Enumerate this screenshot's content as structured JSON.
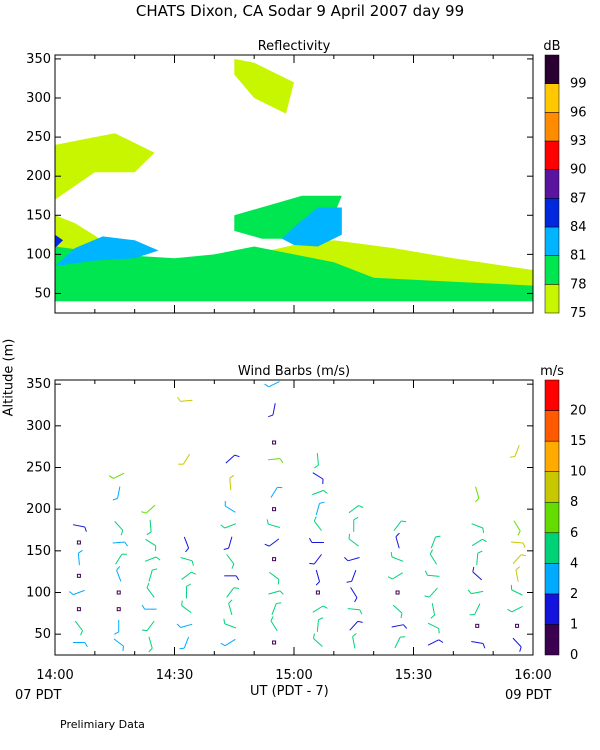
{
  "header": {
    "title": "CHATS Dixon, CA  Sodar    9 April 2007  day  99"
  },
  "footer": {
    "xlabel": "UT  (PDT - 7)",
    "left_date": "07 PDT",
    "right_date": "09 PDT",
    "note": "Prelimiary Data",
    "ylabel": "Altitude (m)"
  },
  "colors": {
    "reflectivity_scale": [
      "#c8f500",
      "#00e650",
      "#00b4ff",
      "#0028dc",
      "#5a14a0",
      "#ff0000",
      "#ff8c00",
      "#ffc800",
      "#2a0032"
    ],
    "wind_scale": [
      "#3c0050",
      "#1414dc",
      "#00aaff",
      "#00d278",
      "#64dc00",
      "#c8c800",
      "#ffaa00",
      "#ff5a00",
      "#ff0000"
    ]
  },
  "chart_data": [
    {
      "type": "heatmap",
      "title": "Reflectivity",
      "colorbar_label": "dB",
      "colorbar_ticks": [
        "75",
        "78",
        "81",
        "84",
        "87",
        "90",
        "93",
        "96",
        "99"
      ],
      "xlim": [
        "14:00",
        "16:00"
      ],
      "ylim": [
        25,
        355
      ],
      "x_ticks": [
        "14:00",
        "14:30",
        "15:00",
        "15:30",
        "16:00"
      ],
      "y_ticks": [
        50,
        100,
        150,
        200,
        250,
        300,
        350
      ],
      "layers": [
        {
          "level": "75",
          "polygon_time_alt": [
            [
              0,
              40
            ],
            [
              120,
              40
            ],
            [
              120,
              80
            ],
            [
              100,
              95
            ],
            [
              85,
              108
            ],
            [
              70,
              118
            ],
            [
              60,
              112
            ],
            [
              45,
              95
            ],
            [
              30,
              88
            ],
            [
              20,
              92
            ],
            [
              5,
              140
            ],
            [
              0,
              150
            ]
          ]
        },
        {
          "level": "75-upper",
          "polygon_time_alt": [
            [
              10,
              205
            ],
            [
              20,
              205
            ],
            [
              25,
              230
            ],
            [
              15,
              255
            ],
            [
              5,
              245
            ],
            [
              0,
              240
            ],
            [
              0,
              170
            ]
          ]
        },
        {
          "level": "75-top",
          "polygon_time_alt": [
            [
              45,
              350
            ],
            [
              50,
              345
            ],
            [
              60,
              320
            ],
            [
              58,
              280
            ],
            [
              50,
              300
            ],
            [
              45,
              330
            ]
          ]
        },
        {
          "level": "78",
          "polygon_time_alt": [
            [
              0,
              40
            ],
            [
              120,
              40
            ],
            [
              120,
              60
            ],
            [
              100,
              65
            ],
            [
              80,
              70
            ],
            [
              70,
              90
            ],
            [
              60,
              100
            ],
            [
              50,
              110
            ],
            [
              40,
              100
            ],
            [
              30,
              95
            ],
            [
              15,
              100
            ],
            [
              0,
              110
            ]
          ]
        },
        {
          "level": "78-mid",
          "polygon_time_alt": [
            [
              45,
              150
            ],
            [
              62,
              175
            ],
            [
              72,
              175
            ],
            [
              70,
              150
            ],
            [
              62,
              120
            ],
            [
              52,
              120
            ],
            [
              45,
              130
            ]
          ]
        },
        {
          "level": "81",
          "polygon_time_alt": [
            [
              0,
              85
            ],
            [
              5,
              108
            ],
            [
              12,
              123
            ],
            [
              20,
              118
            ],
            [
              26,
              105
            ],
            [
              20,
              95
            ],
            [
              10,
              92
            ]
          ]
        },
        {
          "level": "81-right",
          "polygon_time_alt": [
            [
              57,
              120
            ],
            [
              60,
              135
            ],
            [
              66,
              160
            ],
            [
              72,
              160
            ],
            [
              72,
              125
            ],
            [
              66,
              110
            ],
            [
              60,
              112
            ]
          ]
        },
        {
          "level": "84",
          "polygon_time_alt": [
            [
              0,
              108
            ],
            [
              2,
              118
            ],
            [
              0,
              125
            ]
          ]
        }
      ]
    },
    {
      "type": "scatter",
      "title": "Wind Barbs (m/s)",
      "colorbar_label": "m/s",
      "colorbar_ticks": [
        "0",
        "1",
        "2",
        "4",
        "6",
        "8",
        "10",
        "15",
        "20"
      ],
      "xlim": [
        "14:00",
        "16:00"
      ],
      "ylim": [
        25,
        355
      ],
      "x_ticks": [
        "14:00",
        "14:30",
        "15:00",
        "15:30",
        "16:00"
      ],
      "y_ticks": [
        50,
        100,
        150,
        200,
        250,
        300,
        350
      ],
      "series": [
        {
          "time": "14:06",
          "altitudes": [
            40,
            60,
            80,
            100,
            120,
            140,
            160,
            180
          ],
          "speeds": [
            3,
            4,
            0,
            3,
            0,
            3,
            0,
            1
          ]
        },
        {
          "time": "14:16",
          "altitudes": [
            40,
            60,
            80,
            100,
            120,
            140,
            160,
            180,
            220,
            240
          ],
          "speeds": [
            3,
            2,
            0,
            0,
            3,
            4,
            3,
            5,
            3,
            7
          ]
        },
        {
          "time": "14:24",
          "altitudes": [
            40,
            60,
            80,
            100,
            120,
            140,
            160,
            180,
            200
          ],
          "speeds": [
            5,
            5,
            2,
            4,
            4,
            4,
            5,
            5,
            6
          ]
        },
        {
          "time": "14:33",
          "altitudes": [
            40,
            60,
            80,
            100,
            120,
            140,
            160,
            260,
            330
          ],
          "speeds": [
            2,
            2,
            4,
            4,
            4,
            4,
            1,
            8,
            8
          ]
        },
        {
          "time": "14:44",
          "altitudes": [
            40,
            60,
            80,
            100,
            120,
            140,
            160,
            180,
            200,
            230,
            260
          ],
          "speeds": [
            3,
            4,
            4,
            4,
            1,
            4,
            1,
            4,
            3,
            8,
            1
          ]
        },
        {
          "time": "14:55",
          "altitudes": [
            40,
            60,
            80,
            100,
            120,
            140,
            160,
            180,
            200,
            220,
            260,
            280,
            320,
            350
          ],
          "speeds": [
            0,
            5,
            4,
            4,
            4,
            0,
            1,
            4,
            0,
            3,
            6,
            0,
            1,
            2
          ]
        },
        {
          "time": "15:06",
          "altitudes": [
            40,
            60,
            80,
            100,
            120,
            140,
            160,
            180,
            200,
            220,
            240,
            260
          ],
          "speeds": [
            4,
            4,
            4,
            0,
            1,
            1,
            1,
            4,
            3,
            4,
            1,
            4
          ]
        },
        {
          "time": "15:15",
          "altitudes": [
            40,
            60,
            80,
            100,
            120,
            140,
            160,
            180,
            200
          ],
          "speeds": [
            4,
            1,
            4,
            1,
            1,
            1,
            4,
            4,
            5
          ]
        },
        {
          "time": "15:26",
          "altitudes": [
            40,
            60,
            80,
            100,
            120,
            140,
            160,
            180
          ],
          "speeds": [
            5,
            1,
            4,
            0,
            4,
            4,
            1,
            4
          ]
        },
        {
          "time": "15:35",
          "altitudes": [
            40,
            60,
            80,
            100,
            120,
            140,
            160
          ],
          "speeds": [
            1,
            4,
            4,
            4,
            4,
            4,
            5
          ]
        },
        {
          "time": "15:46",
          "altitudes": [
            40,
            60,
            80,
            100,
            120,
            140,
            160,
            180,
            220
          ],
          "speeds": [
            1,
            0,
            4,
            4,
            1,
            4,
            4,
            4,
            6
          ]
        },
        {
          "time": "15:56",
          "altitudes": [
            40,
            60,
            80,
            100,
            120,
            140,
            160,
            180,
            270
          ],
          "speeds": [
            1,
            0,
            4,
            4,
            8,
            8,
            8,
            6,
            8
          ]
        }
      ]
    }
  ]
}
